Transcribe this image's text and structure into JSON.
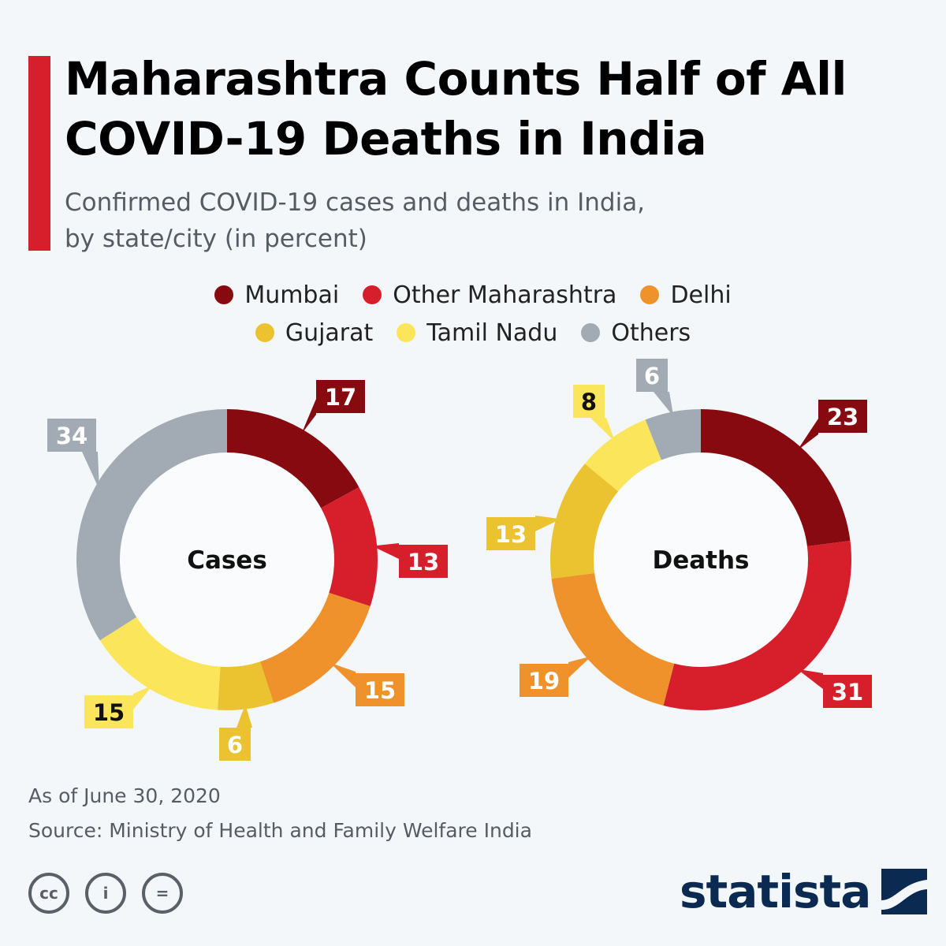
{
  "header": {
    "title": "Maharashtra Counts Half of All COVID-19 Deaths in India",
    "subtitle_line1": "Confirmed COVID-19 cases and deaths in India,",
    "subtitle_line2": "by state/city (in percent)"
  },
  "legend": [
    {
      "label": "Mumbai",
      "color": "#860a10"
    },
    {
      "label": "Other Maharashtra",
      "color": "#d71e2b"
    },
    {
      "label": "Delhi",
      "color": "#ef922c"
    },
    {
      "label": "Gujarat",
      "color": "#ebc331"
    },
    {
      "label": "Tamil Nadu",
      "color": "#fae55b"
    },
    {
      "label": "Others",
      "color": "#a2abb3"
    }
  ],
  "chart_data": [
    {
      "type": "donut",
      "center_label": "Cases",
      "categories": [
        "Mumbai",
        "Other Maharashtra",
        "Delhi",
        "Gujarat",
        "Tamil Nadu",
        "Others"
      ],
      "values": [
        17,
        13,
        15,
        6,
        15,
        34
      ],
      "unit": "percent"
    },
    {
      "type": "donut",
      "center_label": "Deaths",
      "categories": [
        "Mumbai",
        "Other Maharashtra",
        "Delhi",
        "Gujarat",
        "Tamil Nadu",
        "Others"
      ],
      "values": [
        23,
        31,
        19,
        13,
        8,
        6
      ],
      "unit": "percent"
    }
  ],
  "footer": {
    "date": "As of June 30, 2020",
    "source": "Source: Ministry of Health and Family Welfare India"
  },
  "license_icons": [
    {
      "name": "cc-icon",
      "glyph": "cc"
    },
    {
      "name": "attribution-icon",
      "glyph": "i"
    },
    {
      "name": "no-derivatives-icon",
      "glyph": "="
    }
  ],
  "brand": {
    "name": "statista"
  }
}
